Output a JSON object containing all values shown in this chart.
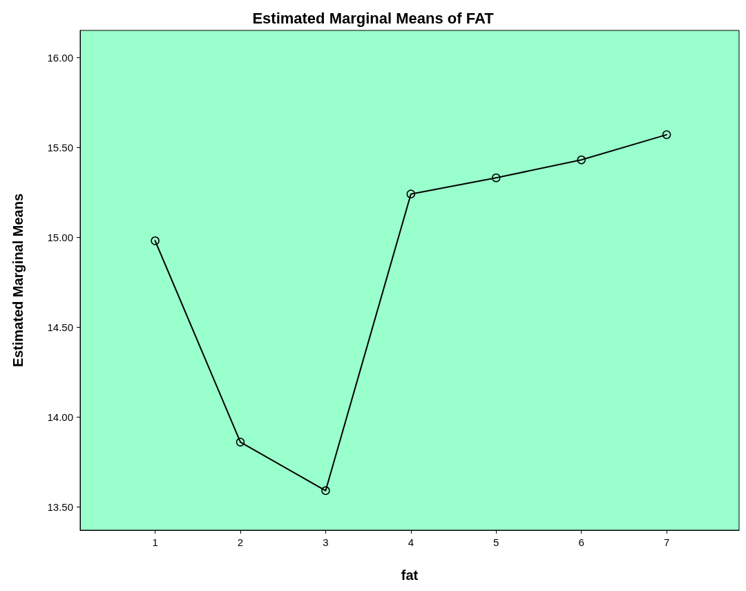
{
  "chart_data": {
    "type": "line",
    "title": "Estimated Marginal Means of FAT",
    "xlabel": "fat",
    "ylabel": "Estimated Marginal Means",
    "x": [
      1,
      2,
      3,
      4,
      5,
      6,
      7
    ],
    "series": [
      {
        "color": "#000000",
        "values": [
          14.98,
          13.86,
          13.59,
          15.24,
          15.33,
          15.43,
          15.57
        ]
      }
    ],
    "xlim": [
      0.12,
      7.85
    ],
    "xticks": [
      1,
      2,
      3,
      4,
      5,
      6,
      7
    ],
    "ylim": [
      13.37,
      16.15
    ],
    "yticks": [
      {
        "value": 13.5,
        "label": "13.50"
      },
      {
        "value": 14,
        "label": "14.00"
      },
      {
        "value": 14.5,
        "label": "14.50"
      },
      {
        "value": 15,
        "label": "15.00"
      },
      {
        "value": 15.5,
        "label": "15.50"
      },
      {
        "value": 16,
        "label": "16.00"
      }
    ],
    "grid": false,
    "marker": "circle",
    "line_style": "solid"
  }
}
